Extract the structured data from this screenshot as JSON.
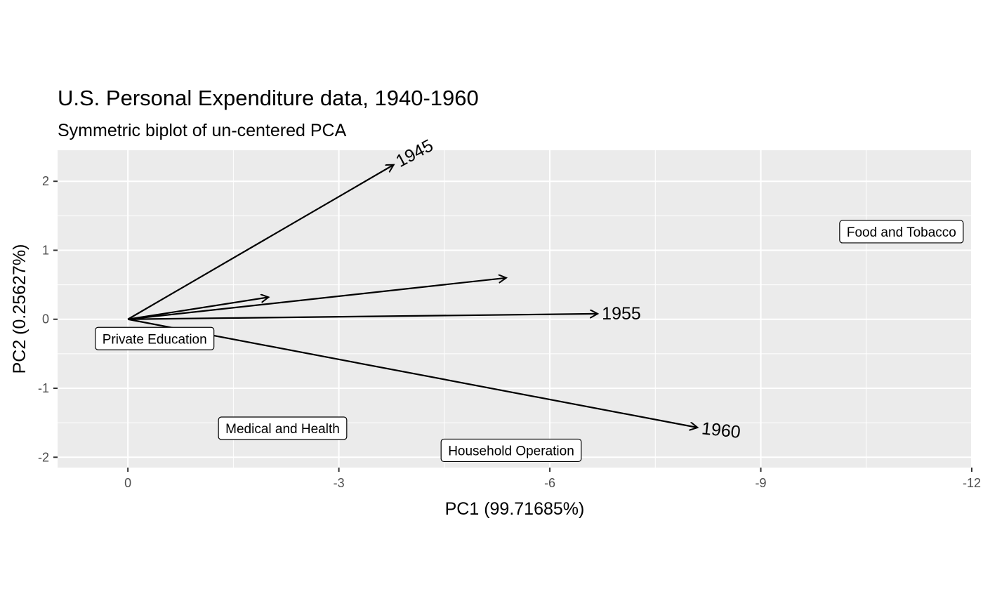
{
  "chart_data": {
    "type": "scatter",
    "title": "U.S. Personal Expenditure data, 1940-1960",
    "subtitle": "Symmetric biplot of un-centered PCA",
    "xlabel": "PC1 (99.71685%)",
    "ylabel": "PC2 (0.25627%)",
    "xlim": [
      1.0,
      -12.0
    ],
    "ylim": [
      -2.15,
      2.45
    ],
    "x_reversed": true,
    "x_ticks": [
      0,
      -3,
      -6,
      -9,
      -12
    ],
    "y_ticks": [
      -2,
      -1,
      0,
      1,
      2
    ],
    "grid": true,
    "background": "#ebebeb",
    "arrows": [
      {
        "label": "1945",
        "x": -3.78,
        "y": 2.24,
        "label_angle": -28,
        "show_label": true
      },
      {
        "label": "",
        "x": -2.0,
        "y": 0.32,
        "show_label": false
      },
      {
        "label": "",
        "x": -5.38,
        "y": 0.6,
        "show_label": false
      },
      {
        "label": "1955",
        "x": -6.68,
        "y": 0.08,
        "label_angle": 0,
        "show_label": true
      },
      {
        "label": "1960",
        "x": -8.1,
        "y": -1.57,
        "label_angle": 6,
        "show_label": true
      }
    ],
    "points": [
      {
        "label": "Food and Tobacco",
        "x": -11.0,
        "y": 1.27
      },
      {
        "label": "Private Education",
        "x": -0.38,
        "y": -0.28
      },
      {
        "label": "Medical and Health",
        "x": -2.2,
        "y": -1.58
      },
      {
        "label": "Household Operation",
        "x": -5.45,
        "y": -1.9
      }
    ]
  }
}
